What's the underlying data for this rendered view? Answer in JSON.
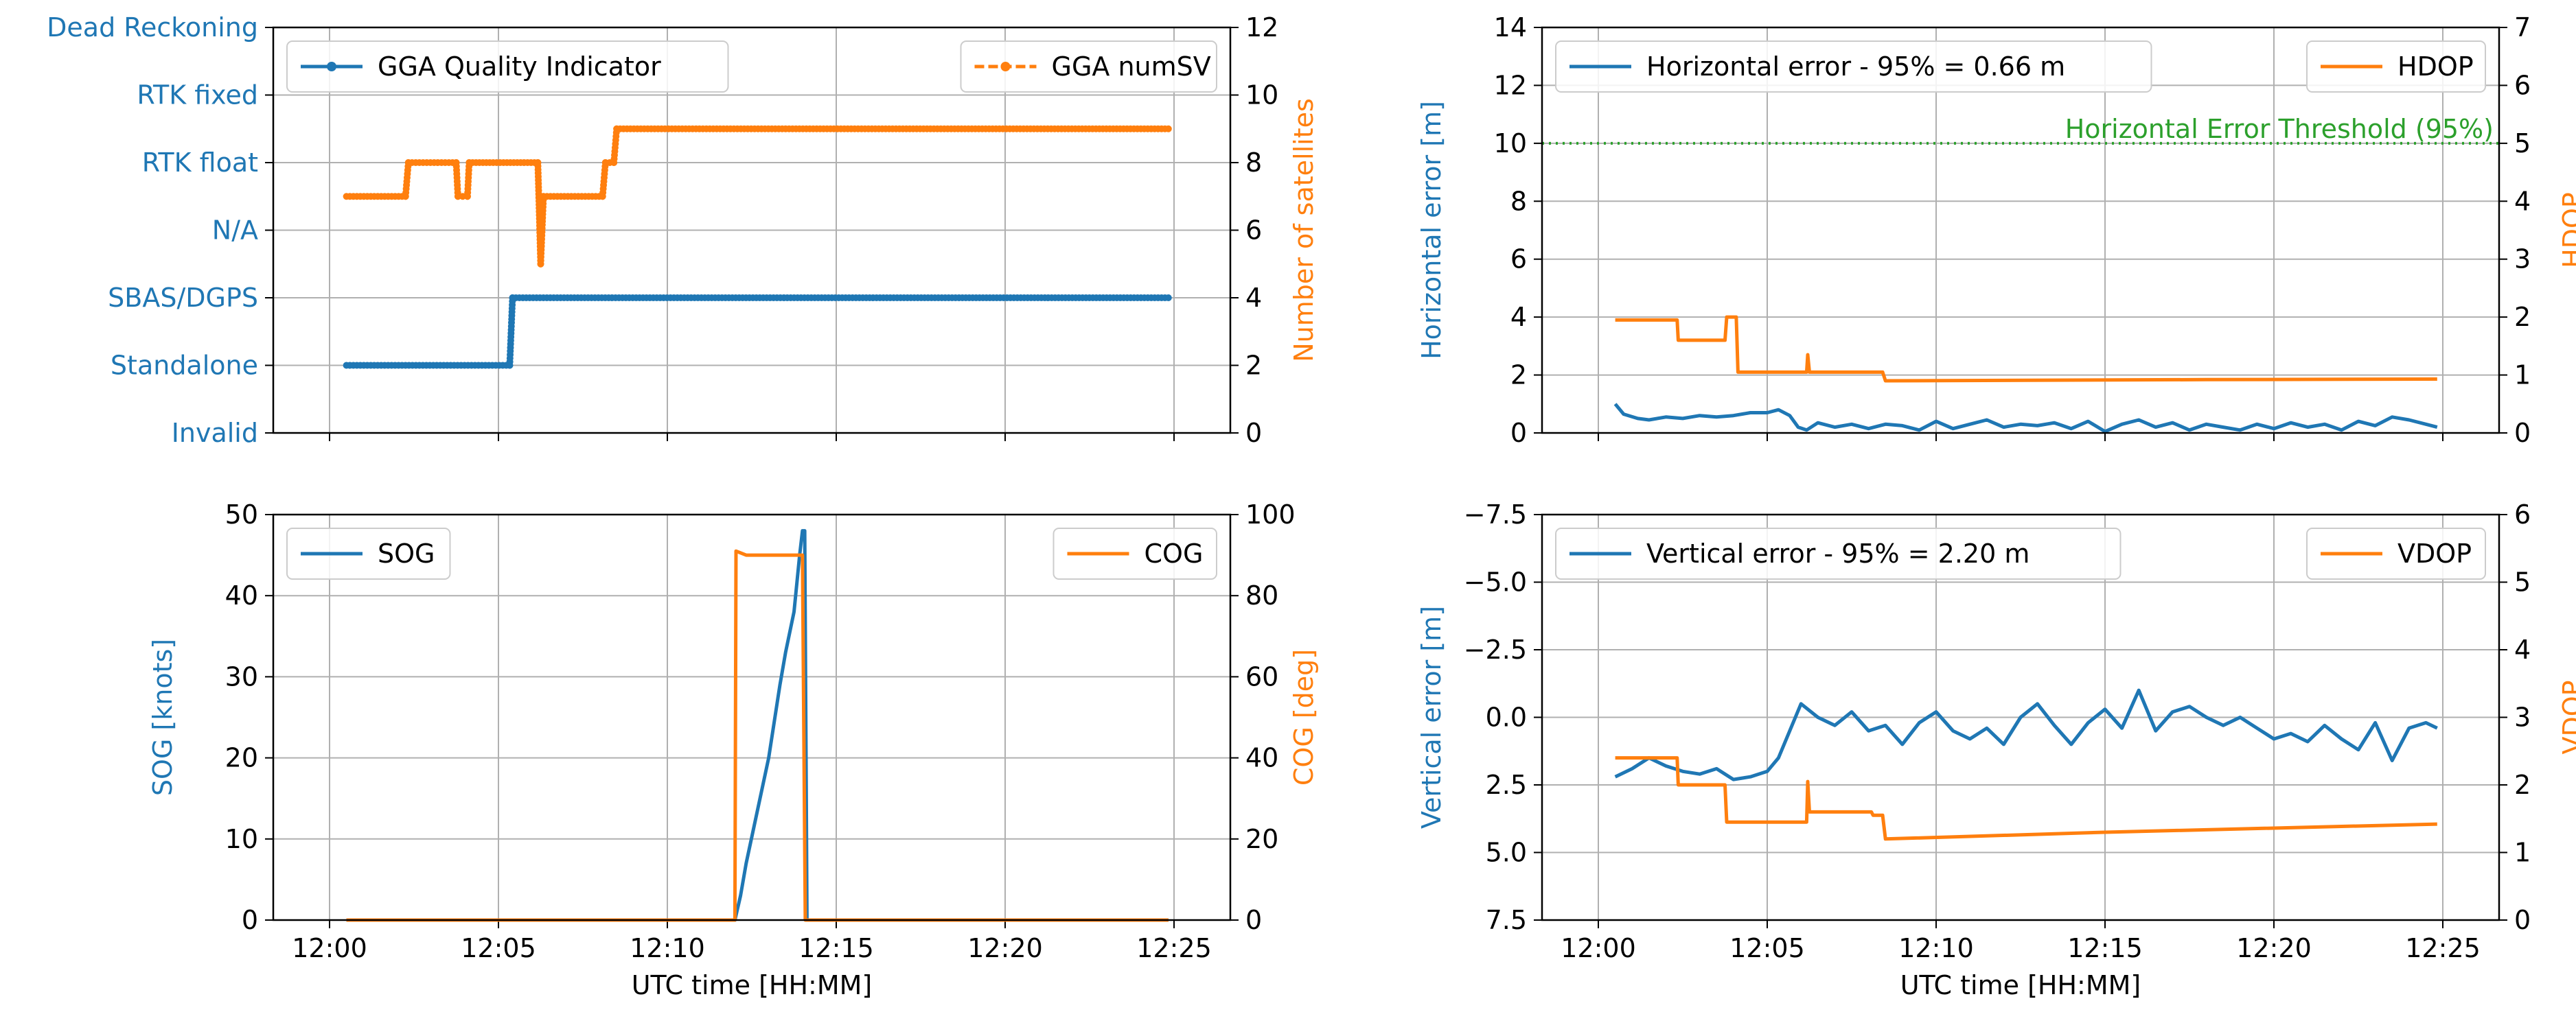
{
  "colors": {
    "blue": "#1f77b4",
    "orange": "#ff7f0e",
    "green": "#2ca02c",
    "grid": "#b0b0b0"
  },
  "chart_data": [
    {
      "id": "quality",
      "type": "line",
      "xlabel": "",
      "ylabel": "",
      "ylabel_right": "Number of satellites",
      "x_ticks": [
        "12:00",
        "12:05",
        "12:10",
        "12:15",
        "12:20",
        "12:25"
      ],
      "ylim": [
        0,
        6
      ],
      "y_categories": [
        "Invalid",
        "Standalone",
        "SBAS/DGPS",
        "N/A",
        "RTK float",
        "RTK fixed",
        "Dead Reckoning"
      ],
      "ylim_right": [
        0,
        12
      ],
      "y_ticks_right": [
        "0",
        "2",
        "4",
        "6",
        "8",
        "10",
        "12"
      ],
      "grid": true,
      "legend": [
        {
          "label": "GGA Quality Indicator",
          "position": "top-left"
        },
        {
          "label": "GGA numSV",
          "position": "top-right"
        }
      ],
      "series": [
        {
          "name": "GGA Quality Indicator",
          "axis": "left",
          "marker": true,
          "points": [
            [
              "12:00:30",
              1
            ],
            [
              "12:05:20",
              1
            ],
            [
              "12:05:25",
              2
            ],
            [
              "12:24:50",
              2
            ]
          ]
        },
        {
          "name": "GGA numSV",
          "axis": "right",
          "marker": true,
          "dashed": true,
          "points": [
            [
              "12:00:30",
              7
            ],
            [
              "12:02:15",
              7
            ],
            [
              "12:02:20",
              8
            ],
            [
              "12:03:45",
              8
            ],
            [
              "12:03:48",
              7
            ],
            [
              "12:04:05",
              7
            ],
            [
              "12:04:08",
              8
            ],
            [
              "12:06:10",
              8
            ],
            [
              "12:06:15",
              5
            ],
            [
              "12:06:20",
              7
            ],
            [
              "12:08:05",
              7
            ],
            [
              "12:08:10",
              8
            ],
            [
              "12:08:25",
              8
            ],
            [
              "12:08:30",
              9
            ],
            [
              "12:24:50",
              9
            ]
          ]
        }
      ]
    },
    {
      "id": "hpos",
      "type": "line",
      "xlabel": "",
      "ylabel": "Horizontal error [m]",
      "ylabel_right": "HDOP",
      "x_ticks": [
        "12:00",
        "12:05",
        "12:10",
        "12:15",
        "12:20",
        "12:25"
      ],
      "ylim": [
        0,
        14
      ],
      "y_ticks": [
        "0",
        "2",
        "4",
        "6",
        "8",
        "10",
        "12",
        "14"
      ],
      "ylim_right": [
        0,
        7
      ],
      "y_ticks_right": [
        "0",
        "1",
        "2",
        "3",
        "4",
        "5",
        "6",
        "7"
      ],
      "grid": true,
      "threshold": {
        "value": 10,
        "label": "Horizontal Error Threshold (95%)"
      },
      "legend": [
        {
          "label": "Horizontal error - 95% = 0.66 m",
          "position": "top-left"
        },
        {
          "label": "HDOP",
          "position": "top-right"
        }
      ],
      "series": [
        {
          "name": "Horizontal error",
          "axis": "left",
          "points": [
            [
              "12:00:30",
              1.0
            ],
            [
              "12:00:45",
              0.65
            ],
            [
              "12:01:10",
              0.5
            ],
            [
              "12:01:30",
              0.45
            ],
            [
              "12:02:00",
              0.55
            ],
            [
              "12:02:30",
              0.5
            ],
            [
              "12:03:00",
              0.6
            ],
            [
              "12:03:30",
              0.55
            ],
            [
              "12:04:00",
              0.6
            ],
            [
              "12:04:30",
              0.7
            ],
            [
              "12:05:00",
              0.7
            ],
            [
              "12:05:20",
              0.8
            ],
            [
              "12:05:40",
              0.6
            ],
            [
              "12:05:55",
              0.2
            ],
            [
              "12:06:10",
              0.1
            ],
            [
              "12:06:30",
              0.35
            ],
            [
              "12:07:00",
              0.2
            ],
            [
              "12:07:30",
              0.3
            ],
            [
              "12:08:00",
              0.15
            ],
            [
              "12:08:30",
              0.3
            ],
            [
              "12:09:00",
              0.25
            ],
            [
              "12:09:30",
              0.1
            ],
            [
              "12:10:00",
              0.4
            ],
            [
              "12:10:30",
              0.15
            ],
            [
              "12:11:00",
              0.3
            ],
            [
              "12:11:30",
              0.45
            ],
            [
              "12:12:00",
              0.2
            ],
            [
              "12:12:30",
              0.3
            ],
            [
              "12:13:00",
              0.25
            ],
            [
              "12:13:30",
              0.35
            ],
            [
              "12:14:00",
              0.15
            ],
            [
              "12:14:30",
              0.4
            ],
            [
              "12:15:00",
              0.05
            ],
            [
              "12:15:30",
              0.3
            ],
            [
              "12:16:00",
              0.45
            ],
            [
              "12:16:30",
              0.2
            ],
            [
              "12:17:00",
              0.35
            ],
            [
              "12:17:30",
              0.1
            ],
            [
              "12:18:00",
              0.3
            ],
            [
              "12:18:30",
              0.2
            ],
            [
              "12:19:00",
              0.1
            ],
            [
              "12:19:30",
              0.3
            ],
            [
              "12:20:00",
              0.15
            ],
            [
              "12:20:30",
              0.35
            ],
            [
              "12:21:00",
              0.2
            ],
            [
              "12:21:30",
              0.3
            ],
            [
              "12:22:00",
              0.1
            ],
            [
              "12:22:30",
              0.4
            ],
            [
              "12:23:00",
              0.25
            ],
            [
              "12:23:30",
              0.55
            ],
            [
              "12:24:00",
              0.45
            ],
            [
              "12:24:30",
              0.3
            ],
            [
              "12:24:50",
              0.2
            ]
          ]
        },
        {
          "name": "HDOP",
          "axis": "right",
          "points": [
            [
              "12:00:30",
              1.95
            ],
            [
              "12:02:20",
              1.95
            ],
            [
              "12:02:22",
              1.6
            ],
            [
              "12:03:45",
              1.6
            ],
            [
              "12:03:48",
              2.0
            ],
            [
              "12:04:05",
              2.0
            ],
            [
              "12:04:08",
              1.05
            ],
            [
              "12:06:10",
              1.05
            ],
            [
              "12:06:12",
              1.35
            ],
            [
              "12:06:15",
              1.05
            ],
            [
              "12:08:10",
              1.05
            ],
            [
              "12:08:25",
              1.05
            ],
            [
              "12:08:30",
              0.9
            ],
            [
              "12:18:00",
              0.92
            ],
            [
              "12:24:50",
              0.93
            ]
          ]
        }
      ]
    },
    {
      "id": "sog",
      "type": "line",
      "xlabel": "UTC time [HH:MM]",
      "ylabel": "SOG [knots]",
      "ylabel_right": "COG [deg]",
      "x_ticks": [
        "12:00",
        "12:05",
        "12:10",
        "12:15",
        "12:20",
        "12:25"
      ],
      "ylim": [
        0,
        50
      ],
      "y_ticks": [
        "0",
        "10",
        "20",
        "30",
        "40",
        "50"
      ],
      "ylim_right": [
        0,
        100
      ],
      "y_ticks_right": [
        "0",
        "20",
        "40",
        "60",
        "80",
        "100"
      ],
      "grid": true,
      "legend": [
        {
          "label": "SOG",
          "position": "top-left"
        },
        {
          "label": "COG",
          "position": "top-right"
        }
      ],
      "series": [
        {
          "name": "SOG",
          "axis": "left",
          "points": [
            [
              "12:00:30",
              0
            ],
            [
              "12:12:00",
              0
            ],
            [
              "12:12:10",
              3
            ],
            [
              "12:12:20",
              7
            ],
            [
              "12:13:00",
              20
            ],
            [
              "12:13:20",
              29
            ],
            [
              "12:13:30",
              33
            ],
            [
              "12:13:45",
              38
            ],
            [
              "12:13:55",
              45
            ],
            [
              "12:14:00",
              48
            ],
            [
              "12:14:04",
              48
            ],
            [
              "12:14:08",
              0
            ],
            [
              "12:24:50",
              0
            ]
          ]
        },
        {
          "name": "COG",
          "axis": "right",
          "points": [
            [
              "12:00:30",
              0
            ],
            [
              "12:12:00",
              0
            ],
            [
              "12:12:02",
              91
            ],
            [
              "12:12:20",
              90
            ],
            [
              "12:14:00",
              90
            ],
            [
              "12:14:05",
              0
            ],
            [
              "12:24:50",
              0
            ]
          ]
        }
      ]
    },
    {
      "id": "vpos",
      "type": "line",
      "xlabel": "UTC time [HH:MM]",
      "ylabel": "Vertical error [m]",
      "ylabel_right": "VDOP",
      "x_ticks": [
        "12:00",
        "12:05",
        "12:10",
        "12:15",
        "12:20",
        "12:25"
      ],
      "ylim": [
        7.5,
        -7.5
      ],
      "y_ticks": [
        "7.5",
        "5.0",
        "2.5",
        "0.0",
        "−2.5",
        "−5.0",
        "−7.5"
      ],
      "ylim_right": [
        0,
        6
      ],
      "y_ticks_right": [
        "0",
        "1",
        "2",
        "3",
        "4",
        "5",
        "6"
      ],
      "grid": true,
      "legend": [
        {
          "label": "Vertical error - 95% = 2.20 m",
          "position": "top-left"
        },
        {
          "label": "VDOP",
          "position": "top-right"
        }
      ],
      "series": [
        {
          "name": "Vertical error",
          "axis": "left",
          "points": [
            [
              "12:00:30",
              2.2
            ],
            [
              "12:01:00",
              1.9
            ],
            [
              "12:01:30",
              1.5
            ],
            [
              "12:02:00",
              1.8
            ],
            [
              "12:02:30",
              2.0
            ],
            [
              "12:03:00",
              2.1
            ],
            [
              "12:03:30",
              1.9
            ],
            [
              "12:04:00",
              2.3
            ],
            [
              "12:04:30",
              2.2
            ],
            [
              "12:05:00",
              2.0
            ],
            [
              "12:05:20",
              1.5
            ],
            [
              "12:05:40",
              0.5
            ],
            [
              "12:06:00",
              -0.5
            ],
            [
              "12:06:30",
              0.0
            ],
            [
              "12:07:00",
              0.3
            ],
            [
              "12:07:30",
              -0.2
            ],
            [
              "12:08:00",
              0.5
            ],
            [
              "12:08:30",
              0.3
            ],
            [
              "12:09:00",
              1.0
            ],
            [
              "12:09:30",
              0.2
            ],
            [
              "12:10:00",
              -0.2
            ],
            [
              "12:10:30",
              0.5
            ],
            [
              "12:11:00",
              0.8
            ],
            [
              "12:11:30",
              0.4
            ],
            [
              "12:12:00",
              1.0
            ],
            [
              "12:12:30",
              0.0
            ],
            [
              "12:13:00",
              -0.5
            ],
            [
              "12:13:30",
              0.3
            ],
            [
              "12:14:00",
              1.0
            ],
            [
              "12:14:30",
              0.2
            ],
            [
              "12:15:00",
              -0.3
            ],
            [
              "12:15:30",
              0.4
            ],
            [
              "12:16:00",
              -1.0
            ],
            [
              "12:16:30",
              0.5
            ],
            [
              "12:17:00",
              -0.2
            ],
            [
              "12:17:30",
              -0.4
            ],
            [
              "12:18:00",
              0.0
            ],
            [
              "12:18:30",
              0.3
            ],
            [
              "12:19:00",
              0.0
            ],
            [
              "12:19:30",
              0.4
            ],
            [
              "12:20:00",
              0.8
            ],
            [
              "12:20:30",
              0.6
            ],
            [
              "12:21:00",
              0.9
            ],
            [
              "12:21:30",
              0.3
            ],
            [
              "12:22:00",
              0.8
            ],
            [
              "12:22:30",
              1.2
            ],
            [
              "12:23:00",
              0.2
            ],
            [
              "12:23:30",
              1.6
            ],
            [
              "12:24:00",
              0.4
            ],
            [
              "12:24:30",
              0.2
            ],
            [
              "12:24:50",
              0.4
            ]
          ]
        },
        {
          "name": "VDOP",
          "axis": "right",
          "points": [
            [
              "12:00:30",
              2.4
            ],
            [
              "12:02:20",
              2.4
            ],
            [
              "12:02:22",
              2.0
            ],
            [
              "12:03:45",
              2.0
            ],
            [
              "12:03:48",
              1.45
            ],
            [
              "12:06:10",
              1.45
            ],
            [
              "12:06:12",
              2.05
            ],
            [
              "12:06:15",
              1.6
            ],
            [
              "12:08:05",
              1.6
            ],
            [
              "12:08:08",
              1.55
            ],
            [
              "12:08:25",
              1.55
            ],
            [
              "12:08:30",
              1.2
            ],
            [
              "12:15:00",
              1.3
            ],
            [
              "12:24:50",
              1.42
            ]
          ]
        }
      ]
    }
  ]
}
